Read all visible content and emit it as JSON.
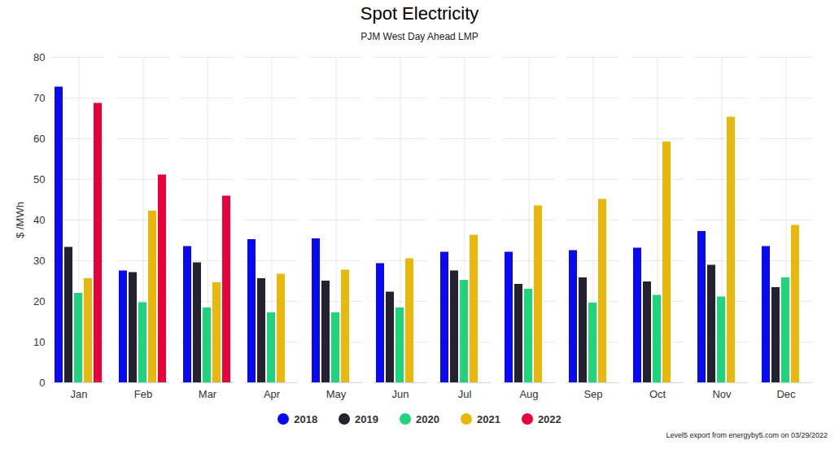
{
  "chart_data": {
    "type": "bar",
    "title": "Spot Electricity",
    "subtitle": "PJM West Day Ahead LMP",
    "y_label": "$ /MWh",
    "caption": "Level5 export from energyby5.com on 03/29/2022",
    "categories": [
      "Jan",
      "Feb",
      "Mar",
      "Apr",
      "May",
      "Jun",
      "Jul",
      "Aug",
      "Sep",
      "Oct",
      "Nov",
      "Dec"
    ],
    "series": [
      {
        "name": "2018",
        "color": "#0a0af0",
        "values": [
          72.7,
          27.5,
          33.5,
          35.2,
          35.4,
          29.3,
          32.1,
          32.1,
          32.5,
          33.1,
          37.2,
          33.5
        ]
      },
      {
        "name": "2019",
        "color": "#23222e",
        "values": [
          33.3,
          27.1,
          29.5,
          25.6,
          25.0,
          22.3,
          27.5,
          24.2,
          25.8,
          24.8,
          28.9,
          23.4
        ]
      },
      {
        "name": "2020",
        "color": "#1fd47a",
        "values": [
          22.0,
          19.7,
          18.4,
          17.2,
          17.2,
          18.4,
          25.2,
          23.0,
          19.6,
          21.5,
          21.1,
          25.8
        ]
      },
      {
        "name": "2021",
        "color": "#e8b90c",
        "values": [
          25.6,
          42.2,
          24.6,
          26.7,
          27.7,
          30.5,
          36.3,
          43.5,
          45.1,
          59.2,
          65.3,
          38.7
        ]
      },
      {
        "name": "2022",
        "color": "#e8003d",
        "values": [
          68.7,
          51.1,
          45.9,
          null,
          null,
          null,
          null,
          null,
          null,
          null,
          null,
          null
        ]
      }
    ],
    "ylim": [
      0,
      80
    ],
    "yticks": [
      0,
      10,
      20,
      30,
      40,
      50,
      60,
      70,
      80
    ],
    "grid": true,
    "legend": "bottom"
  }
}
